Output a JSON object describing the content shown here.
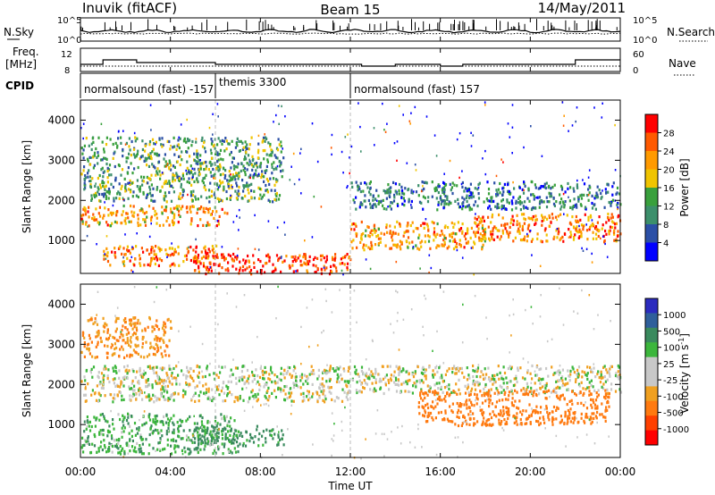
{
  "header": {
    "station": "Inuvik (fitACF)",
    "beam": "Beam 15",
    "date": "14/May/2011"
  },
  "noise_panel": {
    "left_label": "N.Sky",
    "right_label": "N.Search",
    "left_ticks": [
      "10^5",
      "10^0"
    ],
    "right_ticks": [
      "10^5",
      "10^0"
    ]
  },
  "freq_panel": {
    "left_label_1": "Freq.",
    "left_label_2": "[MHz]",
    "left_ticks": [
      "12",
      "8"
    ],
    "right_label": "Nave",
    "right_ticks": [
      "60",
      "0"
    ]
  },
  "cpid": {
    "label": "CPID",
    "segments": [
      {
        "name": "normalsound (fast) -157",
        "start_hour": 0,
        "end_hour": 6
      },
      {
        "name": "themis 3300",
        "start_hour": 6,
        "end_hour": 12
      },
      {
        "name": "normalsound (fast) 157",
        "start_hour": 12,
        "end_hour": 24
      }
    ]
  },
  "x_axis": {
    "label": "Time UT",
    "ticks": [
      "00:00",
      "04:00",
      "08:00",
      "12:00",
      "16:00",
      "20:00",
      "00:00"
    ],
    "range_hours": [
      0,
      24
    ]
  },
  "power_panel": {
    "ylabel": "Slant Range [km]",
    "yticks": [
      "4000",
      "3000",
      "2000",
      "1000"
    ],
    "colorbar_label": "Power [dB]",
    "colorbar_ticks": [
      "28",
      "24",
      "20",
      "16",
      "12",
      "8",
      "4"
    ]
  },
  "velocity_panel": {
    "ylabel": "Slant Range [km]",
    "yticks": [
      "4000",
      "3000",
      "2000",
      "1000"
    ],
    "colorbar_label": "Velocity  [m s",
    "colorbar_label_sup": "-1",
    "colorbar_label_end": "]",
    "colorbar_ticks": [
      "1000",
      "500",
      "100",
      "25",
      "-25",
      "-100",
      "-500",
      "-1000"
    ]
  },
  "colors": {
    "power_scale": [
      "#0000ff",
      "#2b4fa6",
      "#3c8f6b",
      "#39a03c",
      "#f0c400",
      "#ff9a00",
      "#ff5a00",
      "#ff0000"
    ],
    "velocity_scale": [
      "#2b2bbf",
      "#2f5f9b",
      "#3a8a5e",
      "#3cb63c",
      "#c8c8c8",
      "#c8c8c8",
      "#f0a020",
      "#ff7a10",
      "#ff4000",
      "#ff0000"
    ]
  },
  "chart_data": [
    {
      "type": "heatmap",
      "title": "Beam 15",
      "xlabel": "Time UT",
      "ylabel": "Slant Range [km]",
      "xlim": [
        0,
        24
      ],
      "ylim": [
        180,
        4500
      ],
      "z_label": "Power [dB]",
      "z_range": [
        0,
        32
      ],
      "regions": [
        {
          "t0": 0.0,
          "t1": 6.5,
          "r0": 1400,
          "r1": 1900,
          "v": 22
        },
        {
          "t0": 1.0,
          "t1": 6.0,
          "r0": 400,
          "r1": 900,
          "v": 24
        },
        {
          "t0": 5.0,
          "t1": 12.0,
          "r0": 200,
          "r1": 700,
          "v": 28
        },
        {
          "t0": 12.0,
          "t1": 18.0,
          "r0": 800,
          "r1": 1500,
          "v": 22
        },
        {
          "t0": 17.5,
          "t1": 24.0,
          "r0": 1000,
          "r1": 1700,
          "v": 24
        },
        {
          "t0": 0.0,
          "t1": 9.0,
          "r0": 2000,
          "r1": 3600,
          "v": 12
        },
        {
          "t0": 12.0,
          "t1": 24.0,
          "r0": 1800,
          "r1": 2500,
          "v": 9
        }
      ]
    },
    {
      "type": "heatmap",
      "xlabel": "Time UT",
      "ylabel": "Slant Range [km]",
      "xlim": [
        0,
        24
      ],
      "ylim": [
        180,
        4500
      ],
      "z_label": "Velocity [m s-1]",
      "z_range": [
        -1000,
        1000
      ],
      "regions": [
        {
          "t0": 0.0,
          "t1": 12.0,
          "r0": 1600,
          "r1": 2500,
          "v": 0
        },
        {
          "t0": 0.0,
          "t1": 7.0,
          "r0": 300,
          "r1": 1300,
          "v": 80
        },
        {
          "t0": 5.0,
          "t1": 9.0,
          "r0": 500,
          "r1": 1000,
          "v": 150
        },
        {
          "t0": 12.0,
          "t1": 24.0,
          "r0": 1800,
          "r1": 2500,
          "v": 0
        },
        {
          "t0": 15.0,
          "t1": 23.5,
          "r0": 1000,
          "r1": 1900,
          "v": -200
        },
        {
          "t0": 0.0,
          "t1": 4.0,
          "r0": 2700,
          "r1": 3700,
          "v": -100
        }
      ]
    }
  ]
}
